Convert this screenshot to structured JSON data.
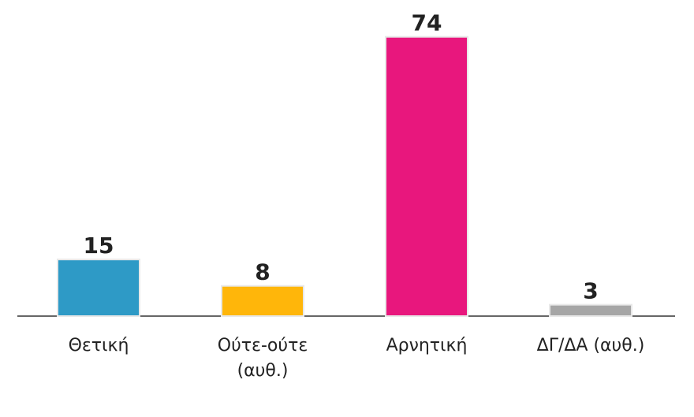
{
  "chart_data": {
    "type": "bar",
    "categories": [
      "Θετική",
      "Ούτε-ούτε (αυθ.)",
      "Αρνητική",
      "ΔΓ/ΔΑ (αυθ.)"
    ],
    "values": [
      15,
      8,
      74,
      3
    ],
    "colors": [
      "#2e9ac6",
      "#ffb60a",
      "#e8177d",
      "#a6a6a6"
    ],
    "ylim": [
      0,
      80
    ]
  }
}
